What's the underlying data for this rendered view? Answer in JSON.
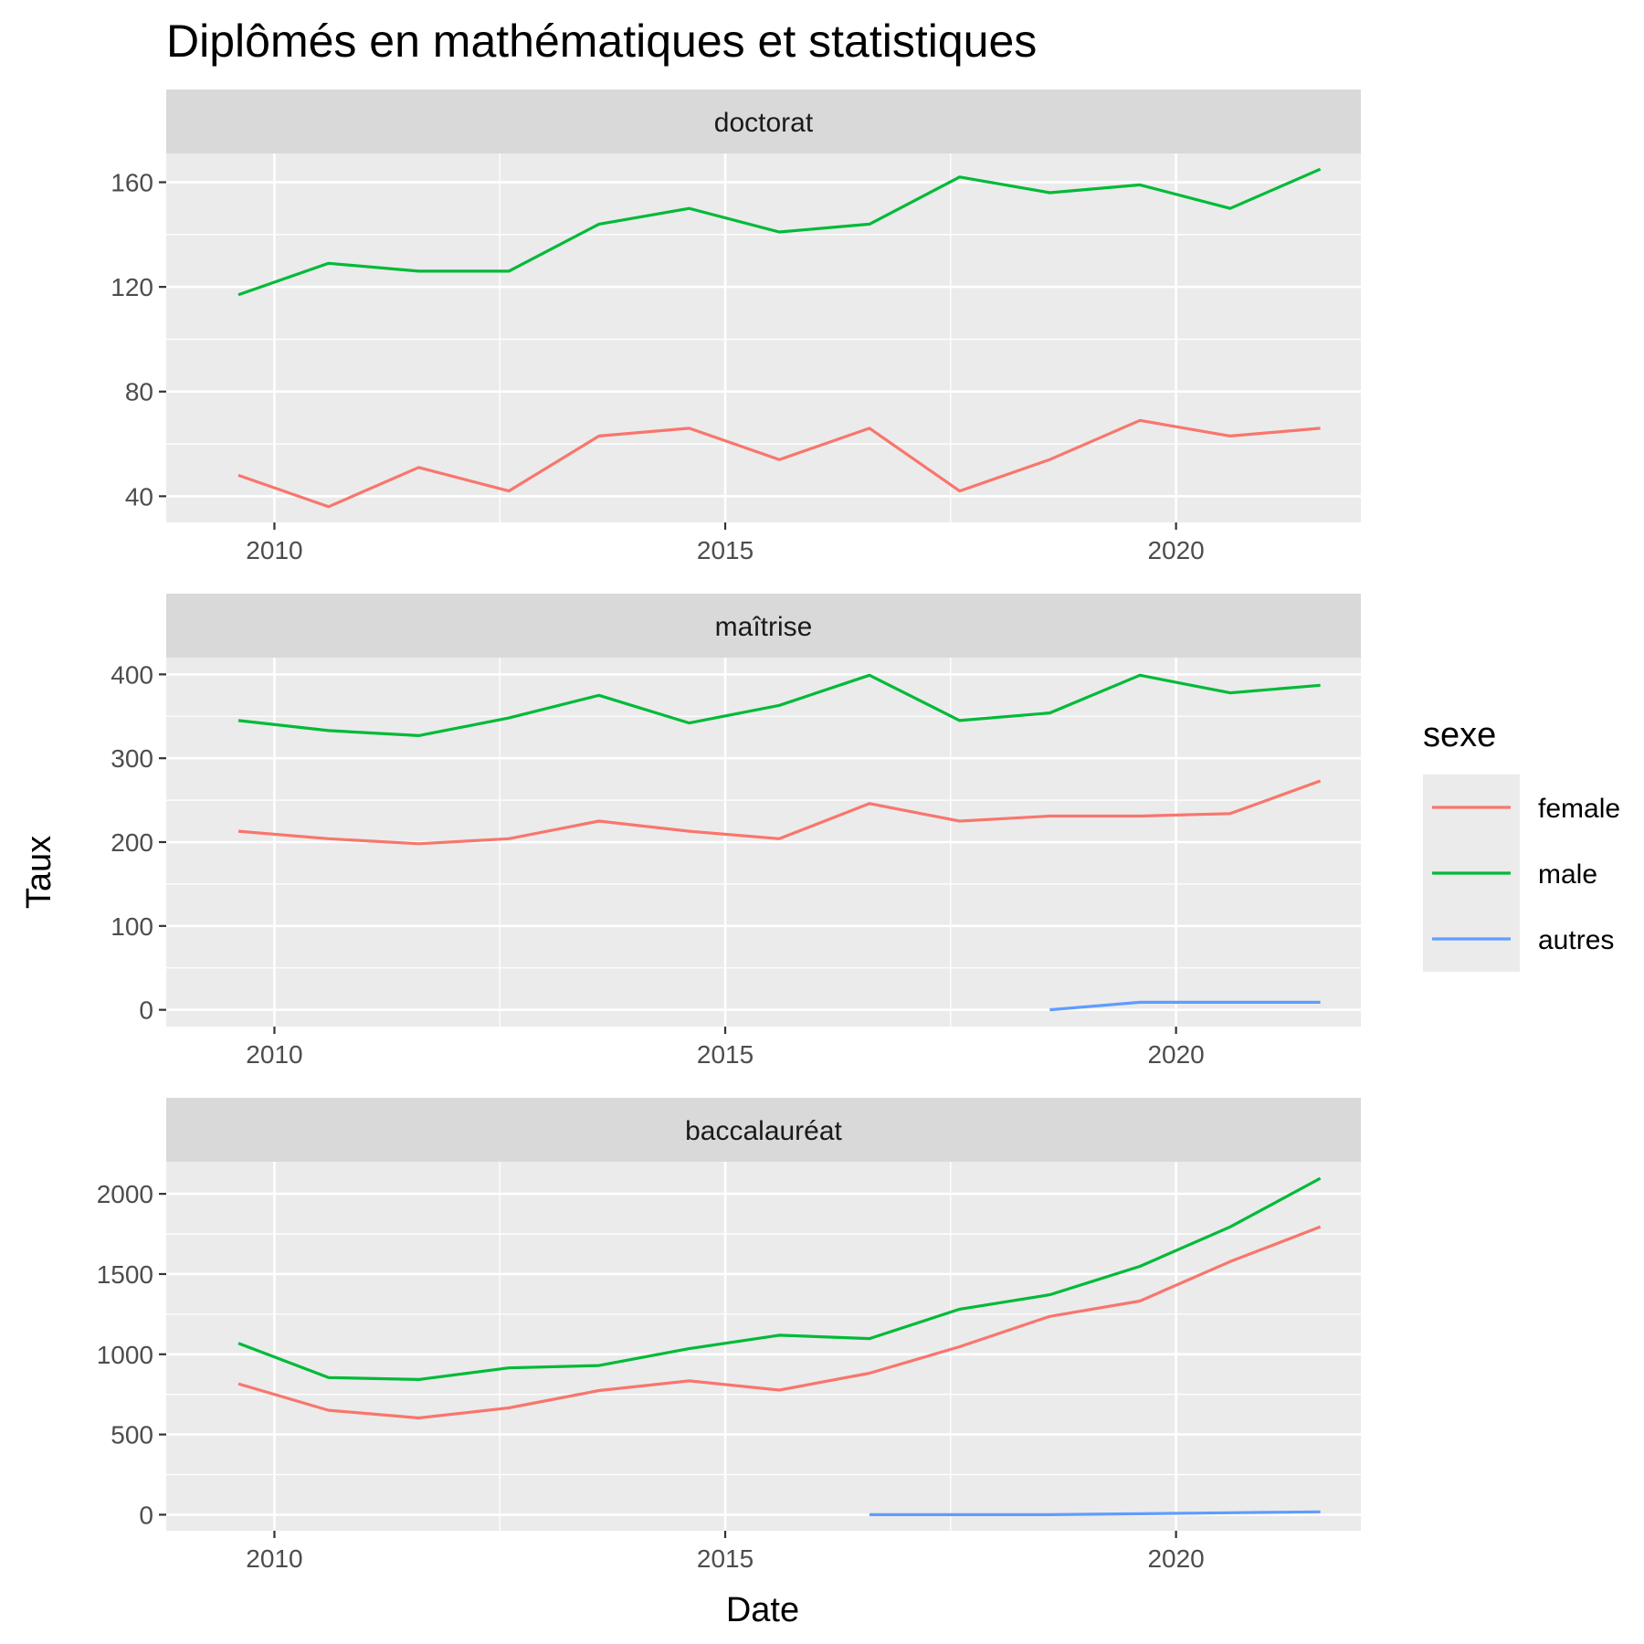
{
  "chart_data": {
    "type": "line",
    "title": "Diplômés en mathématiques et statistiques",
    "xlabel": "Date",
    "ylabel": "Taux",
    "legend": {
      "title": "sexe",
      "position": "right",
      "entries": [
        {
          "name": "female",
          "color": "#F8766D"
        },
        {
          "name": "male",
          "color": "#00BA38"
        },
        {
          "name": "autres",
          "color": "#619CFF"
        }
      ]
    },
    "xlim": [
      2008.8,
      2022.05
    ],
    "x_ticks": [
      2010,
      2015,
      2020
    ],
    "x_tick_labels": [
      "2010",
      "2015",
      "2020"
    ],
    "grid": true,
    "panels": [
      {
        "label": "doctorat",
        "ylim": [
          30,
          171
        ],
        "y_ticks": [
          40,
          80,
          120,
          160
        ],
        "y_tick_labels": [
          "40",
          "80",
          "120",
          "160"
        ],
        "series": [
          {
            "name": "female",
            "color": "#F8766D",
            "x": [
              2009.6,
              2010.6,
              2011.6,
              2012.6,
              2013.6,
              2014.6,
              2015.6,
              2016.6,
              2017.6,
              2018.6,
              2019.6,
              2020.6,
              2021.6
            ],
            "values": [
              48,
              36,
              51,
              42,
              63,
              66,
              54,
              66,
              42,
              54,
              69,
              63,
              66
            ]
          },
          {
            "name": "male",
            "color": "#00BA38",
            "x": [
              2009.6,
              2010.6,
              2011.6,
              2012.6,
              2013.6,
              2014.6,
              2015.6,
              2016.6,
              2017.6,
              2018.6,
              2019.6,
              2020.6,
              2021.6
            ],
            "values": [
              117,
              129,
              126,
              126,
              144,
              150,
              141,
              144,
              162,
              156,
              159,
              150,
              165
            ]
          }
        ]
      },
      {
        "label": "maîtrise",
        "ylim": [
          -20,
          420
        ],
        "y_ticks": [
          0,
          100,
          200,
          300,
          400
        ],
        "y_tick_labels": [
          "0",
          "100",
          "200",
          "300",
          "400"
        ],
        "series": [
          {
            "name": "female",
            "color": "#F8766D",
            "x": [
              2009.6,
              2010.6,
              2011.6,
              2012.6,
              2013.6,
              2014.6,
              2015.6,
              2016.6,
              2017.6,
              2018.6,
              2019.6,
              2020.6,
              2021.6
            ],
            "values": [
              213,
              204,
              198,
              204,
              225,
              213,
              204,
              246,
              225,
              231,
              231,
              234,
              273
            ]
          },
          {
            "name": "male",
            "color": "#00BA38",
            "x": [
              2009.6,
              2010.6,
              2011.6,
              2012.6,
              2013.6,
              2014.6,
              2015.6,
              2016.6,
              2017.6,
              2018.6,
              2019.6,
              2020.6,
              2021.6
            ],
            "values": [
              345,
              333,
              327,
              348,
              375,
              342,
              363,
              399,
              345,
              354,
              399,
              378,
              387
            ]
          },
          {
            "name": "autres",
            "color": "#619CFF",
            "x": [
              2018.6,
              2019.6,
              2020.6,
              2021.6
            ],
            "values": [
              0,
              9,
              9,
              9
            ]
          }
        ]
      },
      {
        "label": "baccalauréat",
        "ylim": [
          -100,
          2200
        ],
        "y_ticks": [
          0,
          500,
          1000,
          1500,
          2000
        ],
        "y_tick_labels": [
          "0",
          "500",
          "1000",
          "1500",
          "2000"
        ],
        "series": [
          {
            "name": "female",
            "color": "#F8766D",
            "x": [
              2009.6,
              2010.6,
              2011.6,
              2012.6,
              2013.6,
              2014.6,
              2015.6,
              2016.6,
              2017.6,
              2018.6,
              2019.6,
              2020.6,
              2021.6
            ],
            "values": [
              816,
              651,
              603,
              666,
              774,
              834,
              777,
              882,
              1047,
              1236,
              1332,
              1578,
              1794
            ]
          },
          {
            "name": "male",
            "color": "#00BA38",
            "x": [
              2009.6,
              2010.6,
              2011.6,
              2012.6,
              2013.6,
              2014.6,
              2015.6,
              2016.6,
              2017.6,
              2018.6,
              2019.6,
              2020.6,
              2021.6
            ],
            "values": [
              1068,
              855,
              843,
              915,
              930,
              1035,
              1119,
              1098,
              1281,
              1371,
              1548,
              1794,
              2097
            ]
          },
          {
            "name": "autres",
            "color": "#619CFF",
            "x": [
              2016.6,
              2017.6,
              2018.6,
              2019.6,
              2020.6,
              2021.6
            ],
            "values": [
              0,
              0,
              0,
              6,
              12,
              18
            ]
          }
        ]
      }
    ]
  }
}
